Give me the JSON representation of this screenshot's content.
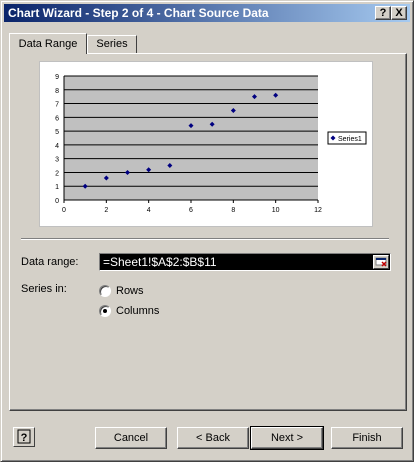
{
  "window": {
    "title": "Chart Wizard - Step 2 of 4 - Chart Source Data"
  },
  "titlebar_buttons": {
    "help": "?",
    "close": "X"
  },
  "tabs": [
    {
      "label": "Data Range",
      "active": true
    },
    {
      "label": "Series",
      "active": false
    }
  ],
  "chart_data": {
    "type": "scatter",
    "x": [
      1,
      2,
      3,
      4,
      5,
      6,
      7,
      8,
      9,
      10
    ],
    "series": [
      {
        "name": "Series1",
        "values": [
          1.0,
          1.6,
          2.0,
          2.2,
          2.5,
          5.4,
          5.5,
          6.5,
          7.5,
          7.6
        ]
      }
    ],
    "xlim": [
      0,
      12
    ],
    "ylim": [
      0,
      9
    ],
    "xticks": [
      "0",
      "2",
      "4",
      "6",
      "8",
      "10",
      "12"
    ],
    "yticks": [
      "0",
      "1",
      "2",
      "3",
      "4",
      "5",
      "6",
      "7",
      "8",
      "9"
    ],
    "grid": "horizontal",
    "legend": "right",
    "plot_color": "#c0c0c0",
    "marker_color": "#000080"
  },
  "form": {
    "data_range_label": "Data range:",
    "data_range_value": "=Sheet1!$A$2:$B$11",
    "series_in_label": "Series in:",
    "options": [
      {
        "label": "Rows",
        "selected": false
      },
      {
        "label": "Columns",
        "selected": true
      }
    ]
  },
  "buttons": {
    "cancel": "Cancel",
    "back": "< Back",
    "next": "Next >",
    "finish": "Finish"
  }
}
